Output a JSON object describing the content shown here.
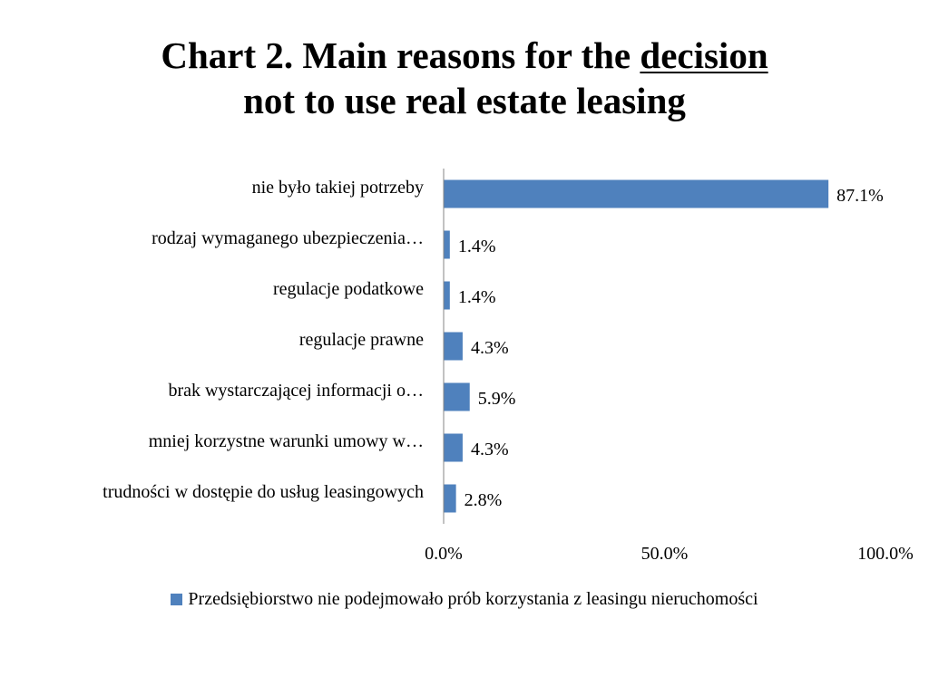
{
  "title": {
    "line1_prefix": "Chart 2. Main reasons for the ",
    "line1_underlined": "decision",
    "line2": "not to use real estate leasing"
  },
  "chart_data": {
    "type": "bar",
    "orientation": "horizontal",
    "categories": [
      "nie było takiej potrzeby",
      "rodzaj wymaganego ubezpieczenia…",
      "regulacje podatkowe",
      "regulacje prawne",
      "brak wystarczającej informacji o…",
      "mniej korzystne warunki umowy w…",
      "trudności w dostępie do usług leasingowych"
    ],
    "series": [
      {
        "name": "Przedsiębiorstwo nie podejmowało prób korzystania z leasingu nieruchomości",
        "values": [
          87.1,
          1.4,
          1.4,
          4.3,
          5.9,
          4.3,
          2.8
        ],
        "value_labels": [
          "87.1%",
          "1.4%",
          "1.4%",
          "4.3%",
          "5.9%",
          "4.3%",
          "2.8%"
        ],
        "color": "#4F81BD"
      }
    ],
    "xlim": [
      0,
      100
    ],
    "xticks": [
      0,
      50,
      100
    ],
    "xtick_labels": [
      "0.0%",
      "50.0%",
      "100.0%"
    ],
    "grid": false,
    "legend_position": "bottom"
  }
}
